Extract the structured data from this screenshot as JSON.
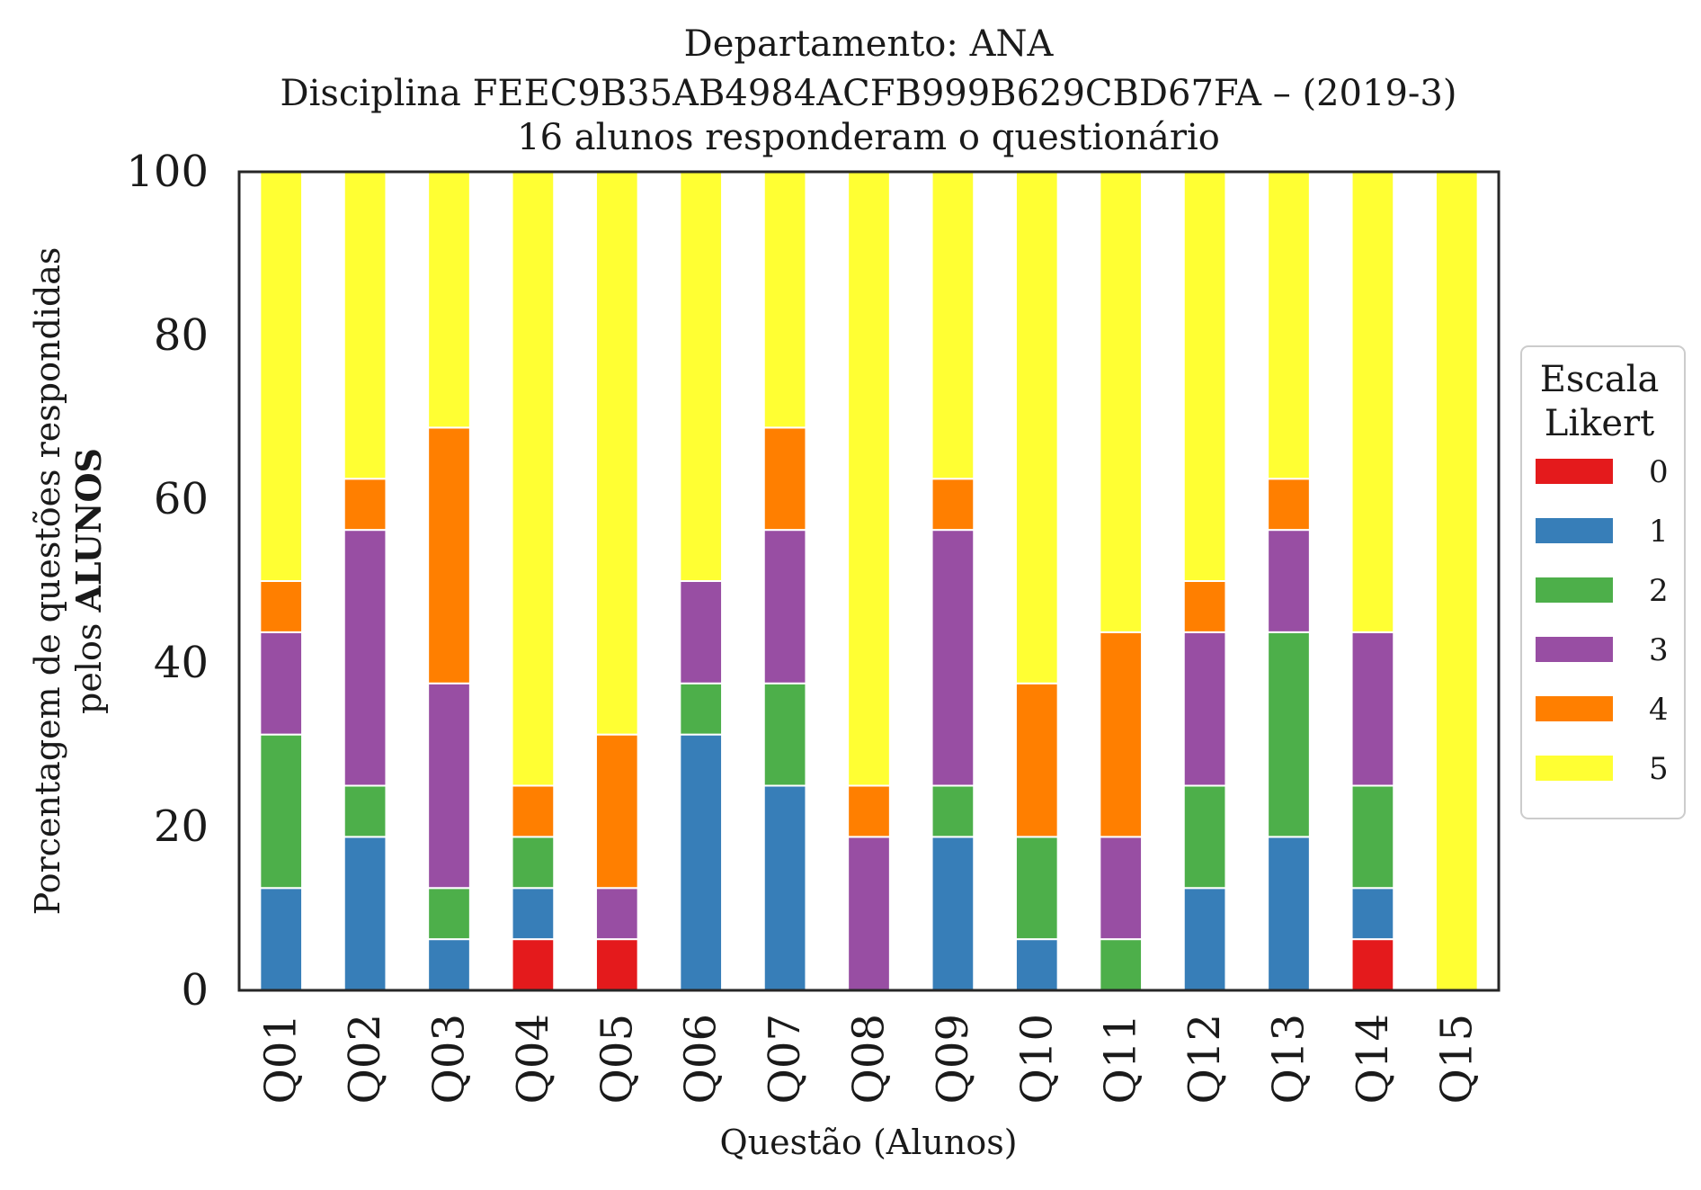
{
  "chart_data": {
    "type": "bar",
    "stacked": true,
    "title_lines": [
      "Departamento: ANA",
      "Disciplina FEEC9B35AB4984ACFB999B629CBD67FA – (2019-3)",
      "16 alunos responderam o questionário"
    ],
    "xlabel": "Questão (Alunos)",
    "ylabel_line1": "Porcentagem de questões respondidas",
    "ylabel_line2_prefix": "pelos ",
    "ylabel_line2_bold": "ALUNOS",
    "ylim": [
      0,
      100
    ],
    "yticks": [
      "0",
      "20",
      "40",
      "60",
      "80",
      "100"
    ],
    "grid": false,
    "legend_position": "right",
    "legend_title_lines": [
      "Escala",
      "Likert"
    ],
    "categories": [
      "Q01",
      "Q02",
      "Q03",
      "Q04",
      "Q05",
      "Q06",
      "Q07",
      "Q08",
      "Q09",
      "Q10",
      "Q11",
      "Q12",
      "Q13",
      "Q14",
      "Q15"
    ],
    "series": [
      {
        "name": "0",
        "color": "#e41a1c",
        "values": [
          0,
          0,
          0,
          6.25,
          6.25,
          0,
          0,
          0,
          0,
          0,
          0,
          0,
          0,
          6.25,
          0
        ]
      },
      {
        "name": "1",
        "color": "#377eb8",
        "values": [
          12.5,
          18.75,
          6.25,
          6.25,
          0,
          31.25,
          25,
          0,
          18.75,
          6.25,
          0,
          12.5,
          18.75,
          6.25,
          0
        ]
      },
      {
        "name": "2",
        "color": "#4daf4a",
        "values": [
          18.75,
          6.25,
          6.25,
          6.25,
          0,
          6.25,
          12.5,
          0,
          6.25,
          12.5,
          6.25,
          12.5,
          25,
          12.5,
          0
        ]
      },
      {
        "name": "3",
        "color": "#984ea3",
        "values": [
          12.5,
          31.25,
          25,
          0,
          6.25,
          12.5,
          18.75,
          18.75,
          31.25,
          0,
          12.5,
          18.75,
          12.5,
          18.75,
          0
        ]
      },
      {
        "name": "4",
        "color": "#ff7f00",
        "values": [
          6.25,
          6.25,
          31.25,
          6.25,
          18.75,
          0,
          12.5,
          6.25,
          6.25,
          18.75,
          25,
          6.25,
          6.25,
          0,
          0
        ]
      },
      {
        "name": "5",
        "color": "#ffff33",
        "values": [
          50,
          37.5,
          31.25,
          75,
          68.75,
          50,
          31.25,
          75,
          37.5,
          62.5,
          56.25,
          50,
          37.5,
          56.25,
          100
        ]
      }
    ]
  }
}
